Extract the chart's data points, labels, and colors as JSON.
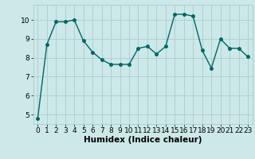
{
  "x": [
    0,
    1,
    2,
    3,
    4,
    5,
    6,
    7,
    8,
    9,
    10,
    11,
    12,
    13,
    14,
    15,
    16,
    17,
    18,
    19,
    20,
    21,
    22,
    23
  ],
  "y": [
    4.8,
    8.7,
    9.9,
    9.9,
    10.0,
    8.9,
    8.3,
    7.9,
    7.65,
    7.65,
    7.65,
    8.5,
    8.6,
    8.2,
    8.6,
    10.3,
    10.3,
    10.2,
    8.4,
    7.45,
    9.0,
    8.5,
    8.5,
    8.05
  ],
  "line_color": "#006666",
  "bg_color": "#cce8e8",
  "grid_color": "#b0d0d0",
  "xlabel": "Humidex (Indice chaleur)",
  "ylim": [
    4.5,
    10.8
  ],
  "xlim": [
    -0.5,
    23.5
  ],
  "yticks": [
    5,
    6,
    7,
    8,
    9,
    10
  ],
  "xticks": [
    0,
    1,
    2,
    3,
    4,
    5,
    6,
    7,
    8,
    9,
    10,
    11,
    12,
    13,
    14,
    15,
    16,
    17,
    18,
    19,
    20,
    21,
    22,
    23
  ],
  "marker_size": 2.5,
  "line_width": 1.0,
  "xlabel_fontsize": 7.5,
  "tick_fontsize": 6.5
}
